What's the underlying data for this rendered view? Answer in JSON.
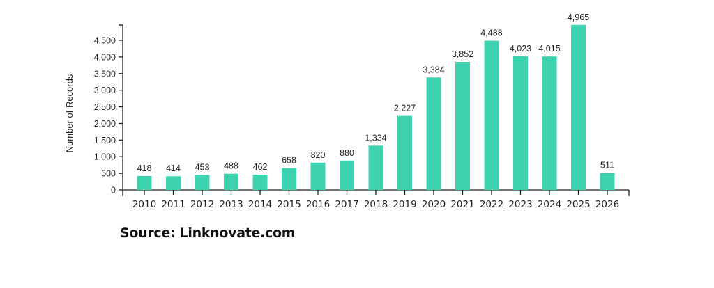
{
  "chart_data": {
    "type": "bar",
    "title": "",
    "xlabel": "",
    "ylabel": "Number of Records",
    "categories": [
      "2010",
      "2011",
      "2012",
      "2013",
      "2014",
      "2015",
      "2016",
      "2017",
      "2018",
      "2019",
      "2020",
      "2021",
      "2022",
      "2023",
      "2024",
      "2025",
      "2026"
    ],
    "values": [
      418,
      414,
      453,
      488,
      462,
      658,
      820,
      880,
      1334,
      2227,
      3384,
      3852,
      4488,
      4023,
      4015,
      4965,
      511
    ],
    "value_labels": [
      "418",
      "414",
      "453",
      "488",
      "462",
      "658",
      "820",
      "880",
      "1,334",
      "2,227",
      "3,384",
      "3,852",
      "4,488",
      "4,023",
      "4,015",
      "4,965",
      "511"
    ],
    "yticks": [
      0,
      500,
      1000,
      1500,
      2000,
      2500,
      3000,
      3500,
      4000,
      4500
    ],
    "ytick_labels": [
      "0",
      "500",
      "1,000",
      "1,500",
      "2,000",
      "2,500",
      "3,000",
      "3,500",
      "4,000",
      "4,500"
    ],
    "ylim": [
      0,
      5000
    ],
    "grid": false,
    "bar_color": "#3dd3b0"
  },
  "source": "Source: Linknovate.com"
}
